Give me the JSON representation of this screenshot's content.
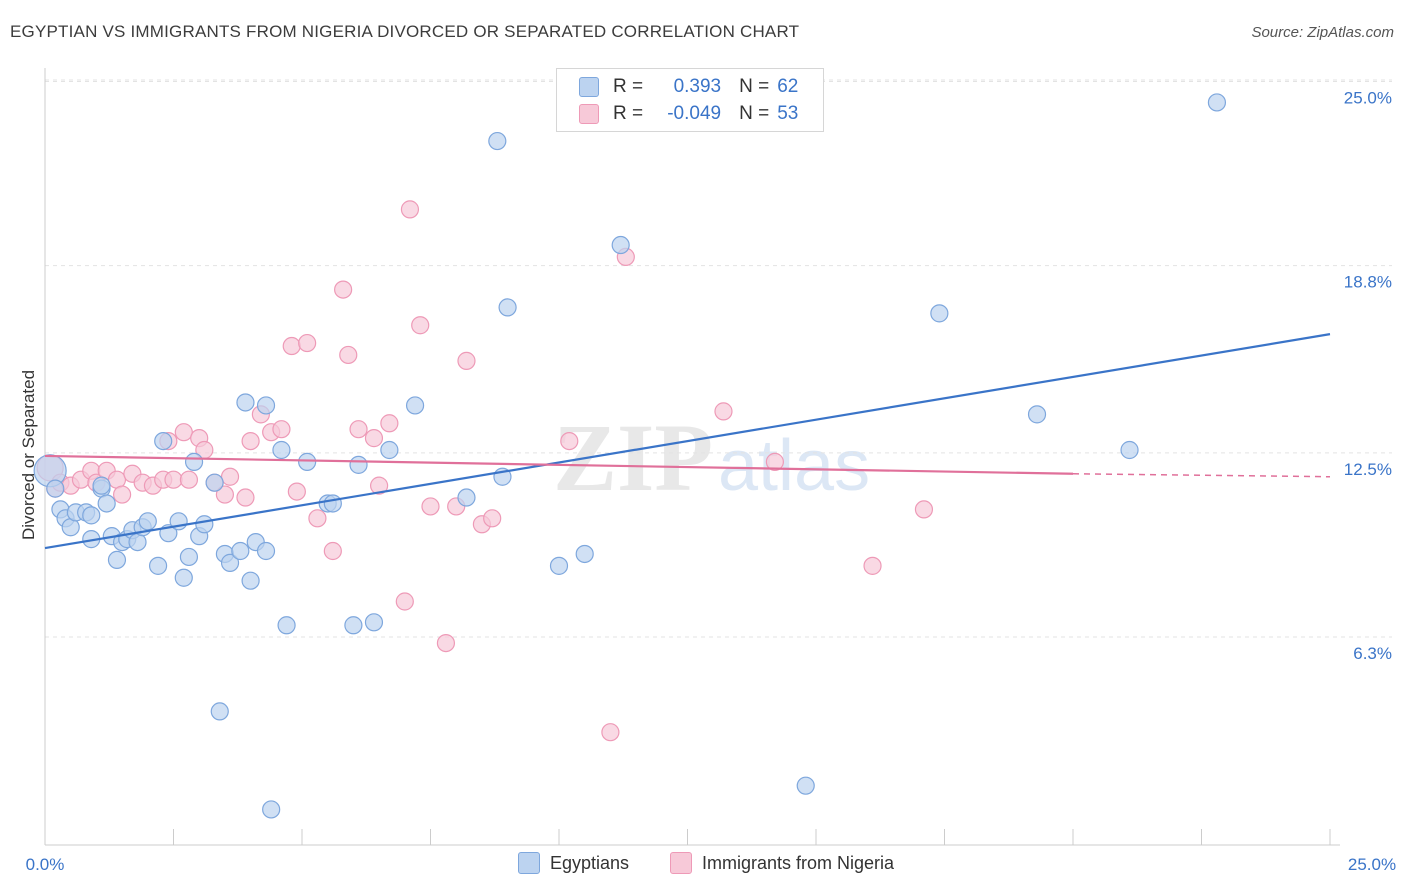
{
  "title": "EGYPTIAN VS IMMIGRANTS FROM NIGERIA DIVORCED OR SEPARATED CORRELATION CHART",
  "source": "Source: ZipAtlas.com",
  "watermark": {
    "zip": "ZIP",
    "atlas": "atlas"
  },
  "legend_top": {
    "r_label": "R =",
    "n_label": "N =",
    "rows": [
      {
        "r": "0.393",
        "n": "62"
      },
      {
        "r": "-0.049",
        "n": "53"
      }
    ]
  },
  "legend_bottom": [
    "Egyptians",
    "Immigrants from Nigeria"
  ],
  "colors": {
    "blue": "#3a74c8",
    "blue_fill": "#bcd3f0",
    "blue_stroke": "#7ea7dd",
    "pink": "#e0709a",
    "pink_fill": "#f7c9d8",
    "pink_stroke": "#ee9ab7"
  },
  "chart_data": {
    "type": "scatter",
    "title": "EGYPTIAN VS IMMIGRANTS FROM NIGERIA DIVORCED OR SEPARATED CORRELATION CHART",
    "ylabel": "Divorced or Separated",
    "xlabel": "",
    "xlim": [
      0,
      25
    ],
    "ylim": [
      0,
      26
    ],
    "x_tick_labels": [
      "0.0%",
      "25.0%"
    ],
    "y_ticks": [
      6.3,
      12.5,
      18.8,
      25.0
    ],
    "y_tick_labels": [
      "6.3%",
      "12.5%",
      "18.8%",
      "25.0%"
    ],
    "grid": "horizontal dashed",
    "legend_position": "top-center",
    "series": [
      {
        "name": "Egyptians",
        "r": 0.393,
        "n": 62,
        "trend": [
          [
            0,
            9.8
          ],
          [
            25,
            17.0
          ]
        ],
        "points": [
          [
            0.1,
            12.4
          ],
          [
            0.3,
            11.1
          ],
          [
            0.4,
            10.8
          ],
          [
            0.5,
            10.5
          ],
          [
            0.6,
            11.0
          ],
          [
            0.8,
            11.0
          ],
          [
            0.9,
            10.9
          ],
          [
            0.9,
            10.1
          ],
          [
            1.1,
            11.8
          ],
          [
            1.2,
            11.3
          ],
          [
            1.3,
            10.2
          ],
          [
            1.4,
            9.4
          ],
          [
            1.5,
            10.0
          ],
          [
            1.6,
            10.1
          ],
          [
            1.7,
            10.4
          ],
          [
            1.8,
            10.0
          ],
          [
            1.9,
            10.5
          ],
          [
            2.0,
            10.7
          ],
          [
            2.2,
            9.2
          ],
          [
            2.3,
            13.4
          ],
          [
            2.4,
            10.3
          ],
          [
            2.6,
            10.7
          ],
          [
            2.7,
            8.8
          ],
          [
            2.8,
            9.5
          ],
          [
            2.9,
            12.7
          ],
          [
            3.0,
            10.2
          ],
          [
            3.1,
            10.6
          ],
          [
            3.3,
            12.0
          ],
          [
            3.4,
            4.3
          ],
          [
            3.5,
            9.6
          ],
          [
            3.6,
            9.3
          ],
          [
            3.8,
            9.7
          ],
          [
            3.9,
            14.7
          ],
          [
            4.0,
            8.7
          ],
          [
            4.1,
            10.0
          ],
          [
            4.3,
            9.7
          ],
          [
            4.3,
            14.6
          ],
          [
            4.4,
            1.0
          ],
          [
            4.6,
            13.1
          ],
          [
            4.7,
            7.2
          ],
          [
            5.1,
            12.7
          ],
          [
            5.5,
            11.3
          ],
          [
            5.6,
            11.3
          ],
          [
            6.0,
            7.2
          ],
          [
            6.1,
            12.6
          ],
          [
            6.4,
            7.3
          ],
          [
            6.7,
            13.1
          ],
          [
            7.2,
            14.6
          ],
          [
            8.2,
            11.5
          ],
          [
            8.8,
            23.5
          ],
          [
            8.9,
            12.2
          ],
          [
            9.0,
            17.9
          ],
          [
            10.0,
            9.2
          ],
          [
            10.5,
            9.6
          ],
          [
            11.2,
            20.0
          ],
          [
            14.8,
            1.8
          ],
          [
            17.4,
            17.7
          ],
          [
            19.3,
            14.3
          ],
          [
            21.1,
            13.1
          ],
          [
            22.8,
            24.8
          ],
          [
            0.2,
            11.8
          ],
          [
            1.1,
            11.9
          ]
        ]
      },
      {
        "name": "Immigrants from Nigeria",
        "r": -0.049,
        "n": 53,
        "trend": [
          [
            0,
            12.9
          ],
          [
            20,
            12.3
          ]
        ],
        "trend_dashed_to": [
          25,
          12.2
        ],
        "points": [
          [
            0.1,
            12.5
          ],
          [
            0.2,
            11.8
          ],
          [
            0.3,
            12.0
          ],
          [
            0.5,
            11.9
          ],
          [
            0.7,
            12.1
          ],
          [
            0.9,
            12.4
          ],
          [
            1.0,
            12.0
          ],
          [
            1.2,
            12.4
          ],
          [
            1.4,
            12.1
          ],
          [
            1.5,
            11.6
          ],
          [
            1.7,
            12.3
          ],
          [
            1.9,
            12.0
          ],
          [
            2.1,
            11.9
          ],
          [
            2.3,
            12.1
          ],
          [
            2.4,
            13.4
          ],
          [
            2.5,
            12.1
          ],
          [
            2.7,
            13.7
          ],
          [
            2.8,
            12.1
          ],
          [
            3.0,
            13.5
          ],
          [
            3.1,
            13.1
          ],
          [
            3.3,
            12.0
          ],
          [
            3.5,
            11.6
          ],
          [
            3.6,
            12.2
          ],
          [
            3.9,
            11.5
          ],
          [
            4.0,
            13.4
          ],
          [
            4.2,
            14.3
          ],
          [
            4.4,
            13.7
          ],
          [
            4.6,
            13.8
          ],
          [
            4.8,
            16.6
          ],
          [
            4.9,
            11.7
          ],
          [
            5.1,
            16.7
          ],
          [
            5.3,
            10.8
          ],
          [
            5.6,
            9.7
          ],
          [
            5.8,
            18.5
          ],
          [
            5.9,
            16.3
          ],
          [
            6.1,
            13.8
          ],
          [
            6.4,
            13.5
          ],
          [
            6.5,
            11.9
          ],
          [
            6.7,
            14.0
          ],
          [
            7.0,
            8.0
          ],
          [
            7.1,
            21.2
          ],
          [
            7.3,
            17.3
          ],
          [
            7.5,
            11.2
          ],
          [
            7.8,
            6.6
          ],
          [
            8.0,
            11.2
          ],
          [
            8.2,
            16.1
          ],
          [
            8.5,
            10.6
          ],
          [
            8.7,
            10.8
          ],
          [
            10.2,
            13.4
          ],
          [
            11.0,
            3.6
          ],
          [
            11.3,
            19.6
          ],
          [
            13.2,
            14.4
          ],
          [
            14.2,
            12.7
          ],
          [
            16.1,
            9.2
          ],
          [
            17.1,
            11.1
          ]
        ]
      }
    ]
  }
}
